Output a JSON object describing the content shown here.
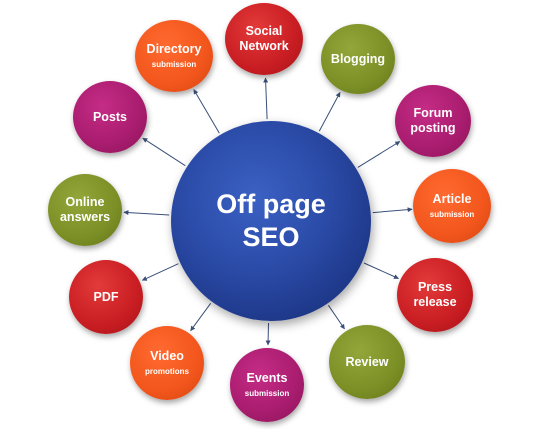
{
  "center": {
    "line1": "Off page",
    "line2": "SEO"
  },
  "nodes": [
    {
      "id": "social-network",
      "line1": "Social",
      "line2": "Network",
      "sub": "",
      "color": "#c81d22"
    },
    {
      "id": "blogging",
      "line1": "Blogging",
      "line2": "",
      "sub": "",
      "color": "#7b8f26"
    },
    {
      "id": "forum-posting",
      "line1": "Forum",
      "line2": "posting",
      "sub": "",
      "color": "#a81c6e"
    },
    {
      "id": "article-submission",
      "line1": "Article",
      "line2": "",
      "sub": "submission",
      "color": "#f2561c"
    },
    {
      "id": "press-release",
      "line1": "Press",
      "line2": "release",
      "sub": "",
      "color": "#c81d22"
    },
    {
      "id": "review",
      "line1": "Review",
      "line2": "",
      "sub": "",
      "color": "#7b8f26"
    },
    {
      "id": "events-submission",
      "line1": "Events",
      "line2": "",
      "sub": "submission",
      "color": "#a81c6e"
    },
    {
      "id": "video-promotions",
      "line1": "Video",
      "line2": "",
      "sub": "promotions",
      "color": "#f2561c"
    },
    {
      "id": "pdf",
      "line1": "PDF",
      "line2": "",
      "sub": "",
      "color": "#c81d22"
    },
    {
      "id": "online-answers",
      "line1": "Online",
      "line2": "answers",
      "sub": "",
      "color": "#7b8f26"
    },
    {
      "id": "posts",
      "line1": "Posts",
      "line2": "",
      "sub": "",
      "color": "#a81c6e"
    },
    {
      "id": "directory-submission",
      "line1": "Directory",
      "line2": "",
      "sub": "submission",
      "color": "#f2561c"
    }
  ],
  "connector_color": "#3a5078"
}
